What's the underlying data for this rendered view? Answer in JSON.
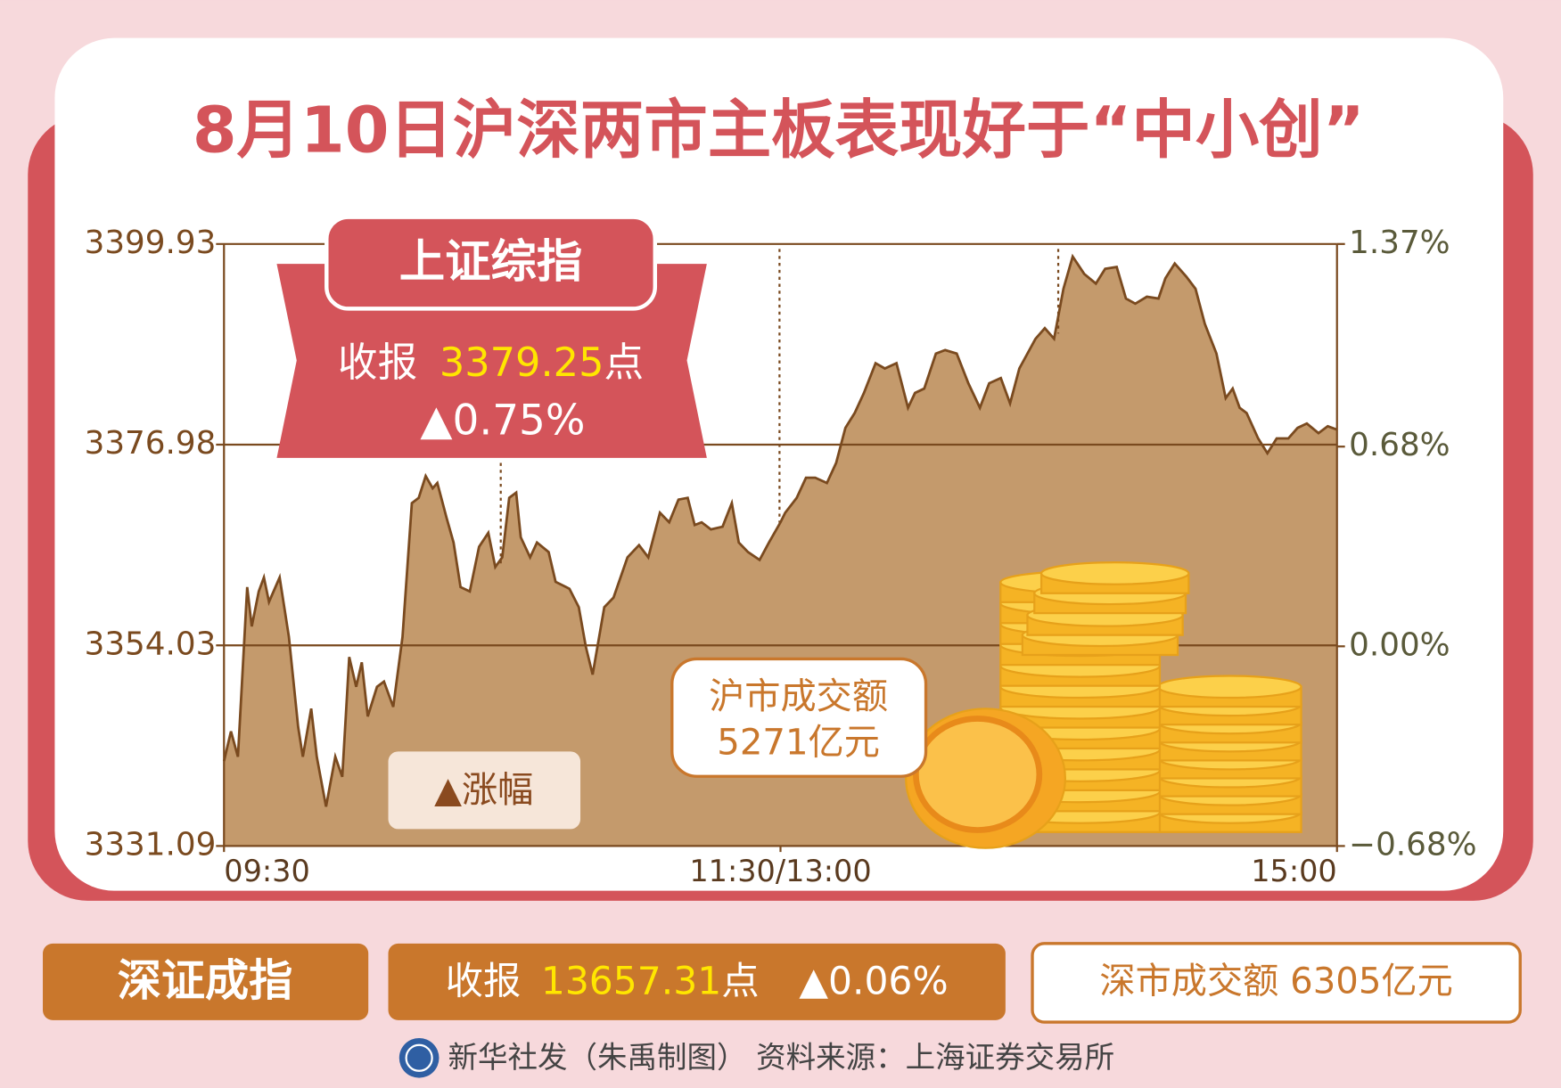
{
  "title": "8月10日沪深两市主板表现好于“中小创”",
  "chart_data": {
    "type": "area",
    "badge": "上证综指",
    "close_label": "收报",
    "close_value": "3379.25",
    "close_unit": "点",
    "change": "▲0.75%",
    "legend_label": "▲涨幅",
    "volume_label": "沪市成交额",
    "volume_value": "5271亿元",
    "x": [
      0,
      1.5,
      3,
      5,
      6,
      7.5,
      8.6,
      9.7,
      12,
      14,
      16,
      17,
      18.8,
      20,
      22,
      24,
      25.5,
      27,
      28.5,
      29.7,
      31,
      33,
      34.5,
      36.5,
      38.5,
      40.5,
      42,
      43.5,
      45,
      46,
      48,
      49.5,
      51,
      53,
      55,
      57,
      58.5,
      60,
      61.5,
      63,
      64,
      66,
      67.5,
      70,
      71.5,
      74.5,
      76.5,
      78,
      79.5,
      82,
      84,
      87,
      89.5,
      91.5,
      94,
      96,
      98,
      100,
      101.5,
      103,
      105,
      107.5,
      109.5,
      111,
      113,
      115.5,
      117.5,
      120,
      121,
      123.5,
      125.5,
      127.5,
      130,
      132,
      134,
      136,
      138,
      140.5,
      142.5,
      145,
      147.5,
      149,
      151,
      153.5,
      155.5,
      158,
      160.5,
      163,
      165,
      167.5,
      169.5,
      171.5,
      175,
      177,
      179,
      181,
      183,
      185.5,
      188,
      190,
      192.5,
      194.5,
      196.5,
      199,
      201.5,
      203,
      205,
      207.5,
      209.5,
      211.5,
      214,
      216,
      217.5,
      219,
      220.5,
      223,
      225,
      227,
      229.5,
      231.5,
      233.5,
      236,
      238,
      240
    ],
    "values": [
      3340.8,
      3344.2,
      3341.3,
      3360.7,
      3356.2,
      3360.2,
      3361.8,
      3359.0,
      3361.8,
      3355.0,
      3344.7,
      3341.3,
      3346.8,
      3341.3,
      3335.6,
      3341.3,
      3339.0,
      3352.7,
      3349.3,
      3352.1,
      3345.9,
      3349.3,
      3349.9,
      3347.0,
      3355.0,
      3370.3,
      3370.9,
      3373.4,
      3372.0,
      3372.6,
      3368.6,
      3365.8,
      3360.7,
      3360.2,
      3365.3,
      3366.9,
      3363.0,
      3364.1,
      3370.9,
      3371.5,
      3366.4,
      3364.1,
      3365.8,
      3364.7,
      3361.3,
      3360.5,
      3358.4,
      3353.9,
      3350.7,
      3358.4,
      3359.5,
      3364.1,
      3365.5,
      3364.1,
      3369.2,
      3368.1,
      3370.7,
      3370.9,
      3367.8,
      3368.1,
      3367.3,
      3367.6,
      3370.3,
      3365.8,
      3364.7,
      3363.8,
      3365.8,
      3368.1,
      3369.2,
      3370.9,
      3373.2,
      3373.2,
      3372.6,
      3374.9,
      3378.9,
      3380.6,
      3382.9,
      3386.3,
      3385.7,
      3386.3,
      3381.2,
      3382.9,
      3383.4,
      3387.4,
      3387.8,
      3387.4,
      3384.0,
      3381.2,
      3384.0,
      3384.6,
      3381.7,
      3385.7,
      3389.1,
      3390.3,
      3389.1,
      3394.8,
      3398.5,
      3396.5,
      3395.4,
      3397.1,
      3397.3,
      3393.7,
      3393.1,
      3393.9,
      3393.7,
      3396.0,
      3397.7,
      3396.2,
      3394.8,
      3390.8,
      3387.4,
      3382.3,
      3383.4,
      3381.2,
      3380.6,
      3377.7,
      3376.0,
      3377.7,
      3377.7,
      3378.9,
      3379.4,
      3378.3,
      3379.1,
      3378.7
    ],
    "color": "#c49a6c",
    "line_color": "#7a4a1f",
    "xlim": [
      0,
      240
    ],
    "xticks": [
      {
        "value": 0,
        "label": "09:30"
      },
      {
        "value": 120,
        "label": "11:30/13:00"
      },
      {
        "value": 240,
        "label": "15:00"
      }
    ],
    "ylim": [
      3331.09,
      3399.93
    ],
    "yticks": [
      3331.09,
      3354.03,
      3376.98,
      3399.93
    ],
    "y2lim": [
      -0.68,
      1.37
    ],
    "y2ticks": [
      {
        "value": -0.68,
        "label": "−0.68%"
      },
      {
        "value": 0,
        "label": "0.00%"
      },
      {
        "value": 0.68,
        "label": "0.68%"
      },
      {
        "value": 1.37,
        "label": "1.37%"
      }
    ],
    "grid": true
  },
  "shenzhen": {
    "name": "深证成指",
    "close_label": "收报",
    "close_value": "13657.31",
    "close_unit": "点",
    "change": "▲0.06%",
    "volume": "深市成交额 6305亿元"
  },
  "footer": "新华社发（朱禹制图） 资料来源：上海证券交易所"
}
